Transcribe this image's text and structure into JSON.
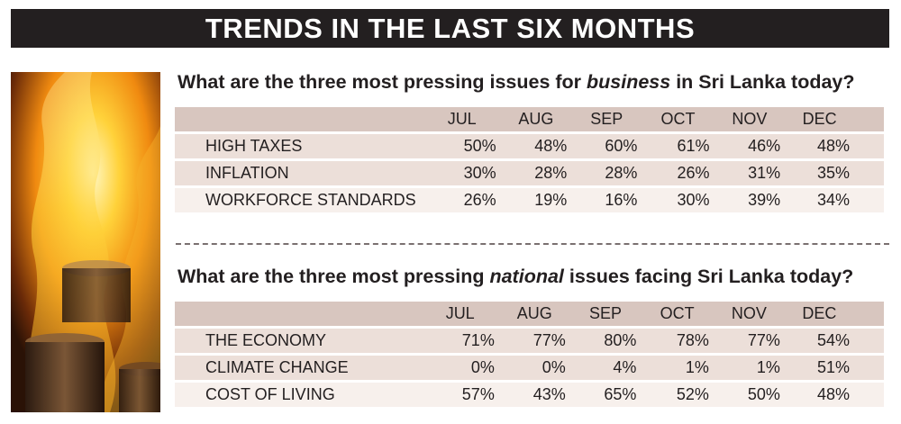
{
  "banner_title": "TRENDS IN THE LAST SIX MONTHS",
  "months": [
    "JUL",
    "AUG",
    "SEP",
    "OCT",
    "NOV",
    "DEC"
  ],
  "business": {
    "question_pre": "What are the three most pressing issues for ",
    "question_em": "business",
    "question_post": " in Sri Lanka today?",
    "rows": [
      {
        "label": "HIGH TAXES",
        "values": [
          "50%",
          "48%",
          "60%",
          "61%",
          "46%",
          "48%"
        ]
      },
      {
        "label": "INFLATION",
        "values": [
          "30%",
          "28%",
          "28%",
          "26%",
          "31%",
          "35%"
        ]
      },
      {
        "label": "WORKFORCE STANDARDS",
        "values": [
          "26%",
          "19%",
          "16%",
          "30%",
          "39%",
          "34%"
        ]
      }
    ]
  },
  "national": {
    "question_pre": "What are the three most pressing ",
    "question_em": "national",
    "question_post": " issues facing Sri Lanka today?",
    "rows": [
      {
        "label": "THE ECONOMY",
        "values": [
          "71%",
          "77%",
          "80%",
          "78%",
          "77%",
          "54%"
        ]
      },
      {
        "label": "CLIMATE CHANGE",
        "values": [
          "0%",
          "0%",
          "4%",
          "1%",
          "1%",
          "51%"
        ]
      },
      {
        "label": "COST OF LIVING",
        "values": [
          "57%",
          "43%",
          "65%",
          "52%",
          "50%",
          "48%"
        ]
      }
    ]
  },
  "colors": {
    "banner_bg": "#231f20",
    "header_row": "#d8c6bf",
    "shaded_row": "#ecdfd9",
    "light_row": "#f7f0ec"
  }
}
